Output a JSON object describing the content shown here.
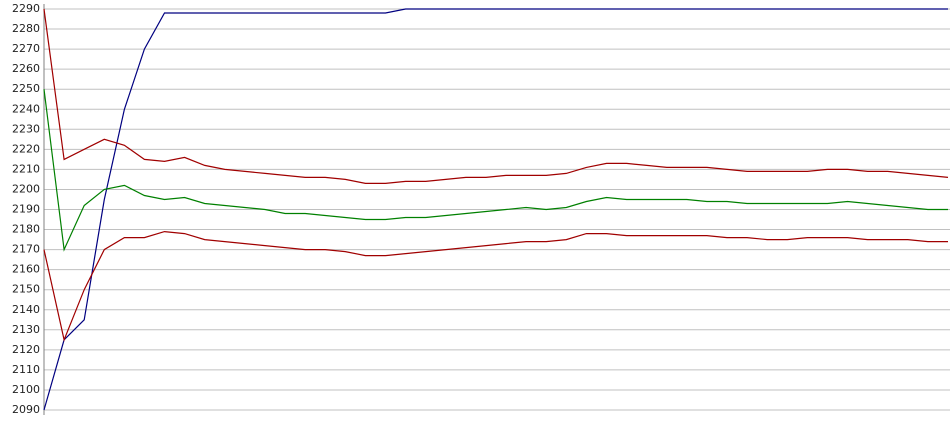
{
  "chart_data": {
    "type": "line",
    "categories": [
      null,
      null,
      null,
      null,
      null,
      null,
      null,
      null,
      null,
      null,
      null,
      null,
      null,
      null,
      null,
      null,
      null,
      null,
      null,
      null,
      null,
      null,
      null,
      null,
      null,
      null,
      null,
      null,
      null,
      null,
      null,
      null,
      null,
      null,
      null,
      null,
      null,
      null,
      null,
      null,
      null,
      null,
      null,
      null,
      null,
      null
    ],
    "series": [
      {
        "color": "#000080",
        "values": [
          2090,
          2125,
          2135,
          2195,
          2240,
          2270,
          2288,
          2288,
          2288,
          2288,
          2288,
          2288,
          2288,
          2288,
          2288,
          2288,
          2288,
          2288,
          2290,
          2290,
          2290,
          2290,
          2290,
          2290,
          2290,
          2290,
          2290,
          2290,
          2290,
          2290,
          2290,
          2290,
          2290,
          2290,
          2290,
          2290,
          2290,
          2290,
          2290,
          2290,
          2290,
          2290,
          2290,
          2290,
          2290,
          2290
        ]
      },
      {
        "color": "#a00000",
        "values": [
          2290,
          2215,
          2220,
          2225,
          2222,
          2215,
          2214,
          2216,
          2212,
          2210,
          2209,
          2208,
          2207,
          2206,
          2206,
          2205,
          2203,
          2203,
          2204,
          2204,
          2205,
          2206,
          2206,
          2207,
          2207,
          2207,
          2208,
          2211,
          2213,
          2213,
          2212,
          2211,
          2211,
          2211,
          2210,
          2209,
          2209,
          2209,
          2209,
          2210,
          2210,
          2209,
          2209,
          2208,
          2207,
          2206
        ]
      },
      {
        "color": "#008000",
        "values": [
          2250,
          2170,
          2192,
          2200,
          2202,
          2197,
          2195,
          2196,
          2193,
          2192,
          2191,
          2190,
          2188,
          2188,
          2187,
          2186,
          2185,
          2185,
          2186,
          2186,
          2187,
          2188,
          2189,
          2190,
          2191,
          2190,
          2191,
          2194,
          2196,
          2195,
          2195,
          2195,
          2195,
          2194,
          2194,
          2193,
          2193,
          2193,
          2193,
          2193,
          2194,
          2193,
          2192,
          2191,
          2190,
          2190
        ]
      },
      {
        "color": "#a00000",
        "values": [
          2170,
          2125,
          2150,
          2170,
          2176,
          2176,
          2179,
          2178,
          2175,
          2174,
          2173,
          2172,
          2171,
          2170,
          2170,
          2169,
          2167,
          2167,
          2168,
          2169,
          2170,
          2171,
          2172,
          2173,
          2174,
          2174,
          2175,
          2178,
          2178,
          2177,
          2177,
          2177,
          2177,
          2177,
          2176,
          2176,
          2175,
          2175,
          2176,
          2176,
          2176,
          2175,
          2175,
          2175,
          2174,
          2174
        ]
      }
    ],
    "ylim": [
      2090,
      2290
    ],
    "yticks": [
      2090,
      2100,
      2110,
      2120,
      2130,
      2140,
      2150,
      2160,
      2170,
      2180,
      2190,
      2200,
      2210,
      2220,
      2230,
      2240,
      2250,
      2260,
      2270,
      2280,
      2290
    ],
    "grid": true
  }
}
